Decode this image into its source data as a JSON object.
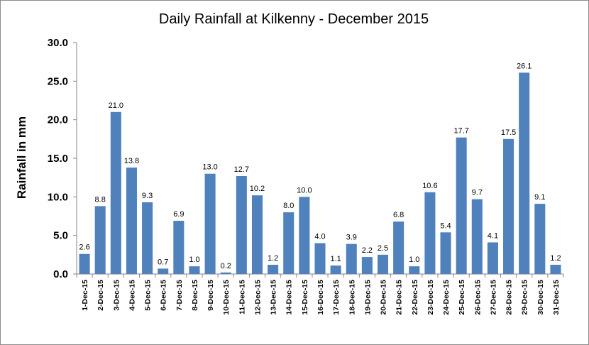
{
  "chart_data": {
    "type": "bar",
    "title": "Daily Rainfall at Kilkenny - December 2015",
    "xlabel": "",
    "ylabel": "Rainfall in mm",
    "ylim": [
      0,
      30
    ],
    "yticks": [
      "0.0",
      "5.0",
      "10.0",
      "15.0",
      "20.0",
      "25.0",
      "30.0"
    ],
    "grid": false,
    "bar_color": "#4f81bd",
    "categories": [
      "1-Dec-15",
      "2-Dec-15",
      "3-Dec-15",
      "4-Dec-15",
      "5-Dec-15",
      "6-Dec-15",
      "7-Dec-15",
      "8-Dec-15",
      "9-Dec-15",
      "10-Dec-15",
      "11-Dec-15",
      "12-Dec-15",
      "13-Dec-15",
      "14-Dec-15",
      "15-Dec-15",
      "16-Dec-15",
      "17-Dec-15",
      "18-Dec-15",
      "19-Dec-15",
      "20-Dec-15",
      "21-Dec-15",
      "22-Dec-15",
      "23-Dec-15",
      "24-Dec-15",
      "25-Dec-15",
      "26-Dec-15",
      "27-Dec-15",
      "28-Dec-15",
      "29-Dec-15",
      "30-Dec-15",
      "31-Dec-15"
    ],
    "values": [
      2.6,
      8.8,
      21.0,
      13.8,
      9.3,
      0.7,
      6.9,
      1.0,
      13.0,
      0.2,
      12.7,
      10.2,
      1.2,
      8.0,
      10.0,
      4.0,
      1.1,
      3.9,
      2.2,
      2.5,
      6.8,
      1.0,
      10.6,
      5.4,
      17.7,
      9.7,
      4.1,
      17.5,
      26.1,
      9.1,
      1.2
    ],
    "data_labels": [
      "2.6",
      "8.8",
      "21.0",
      "13.8",
      "9.3",
      "0.7",
      "6.9",
      "1.0",
      "13.0",
      "0.2",
      "12.7",
      "10.2",
      "1.2",
      "8.0",
      "10.0",
      "4.0",
      "1.1",
      "3.9",
      "2.2",
      "2.5",
      "6.8",
      "1.0",
      "10.6",
      "5.4",
      "17.7",
      "9.7",
      "4.1",
      "17.5",
      "26.1",
      "9.1",
      "1.2"
    ]
  }
}
